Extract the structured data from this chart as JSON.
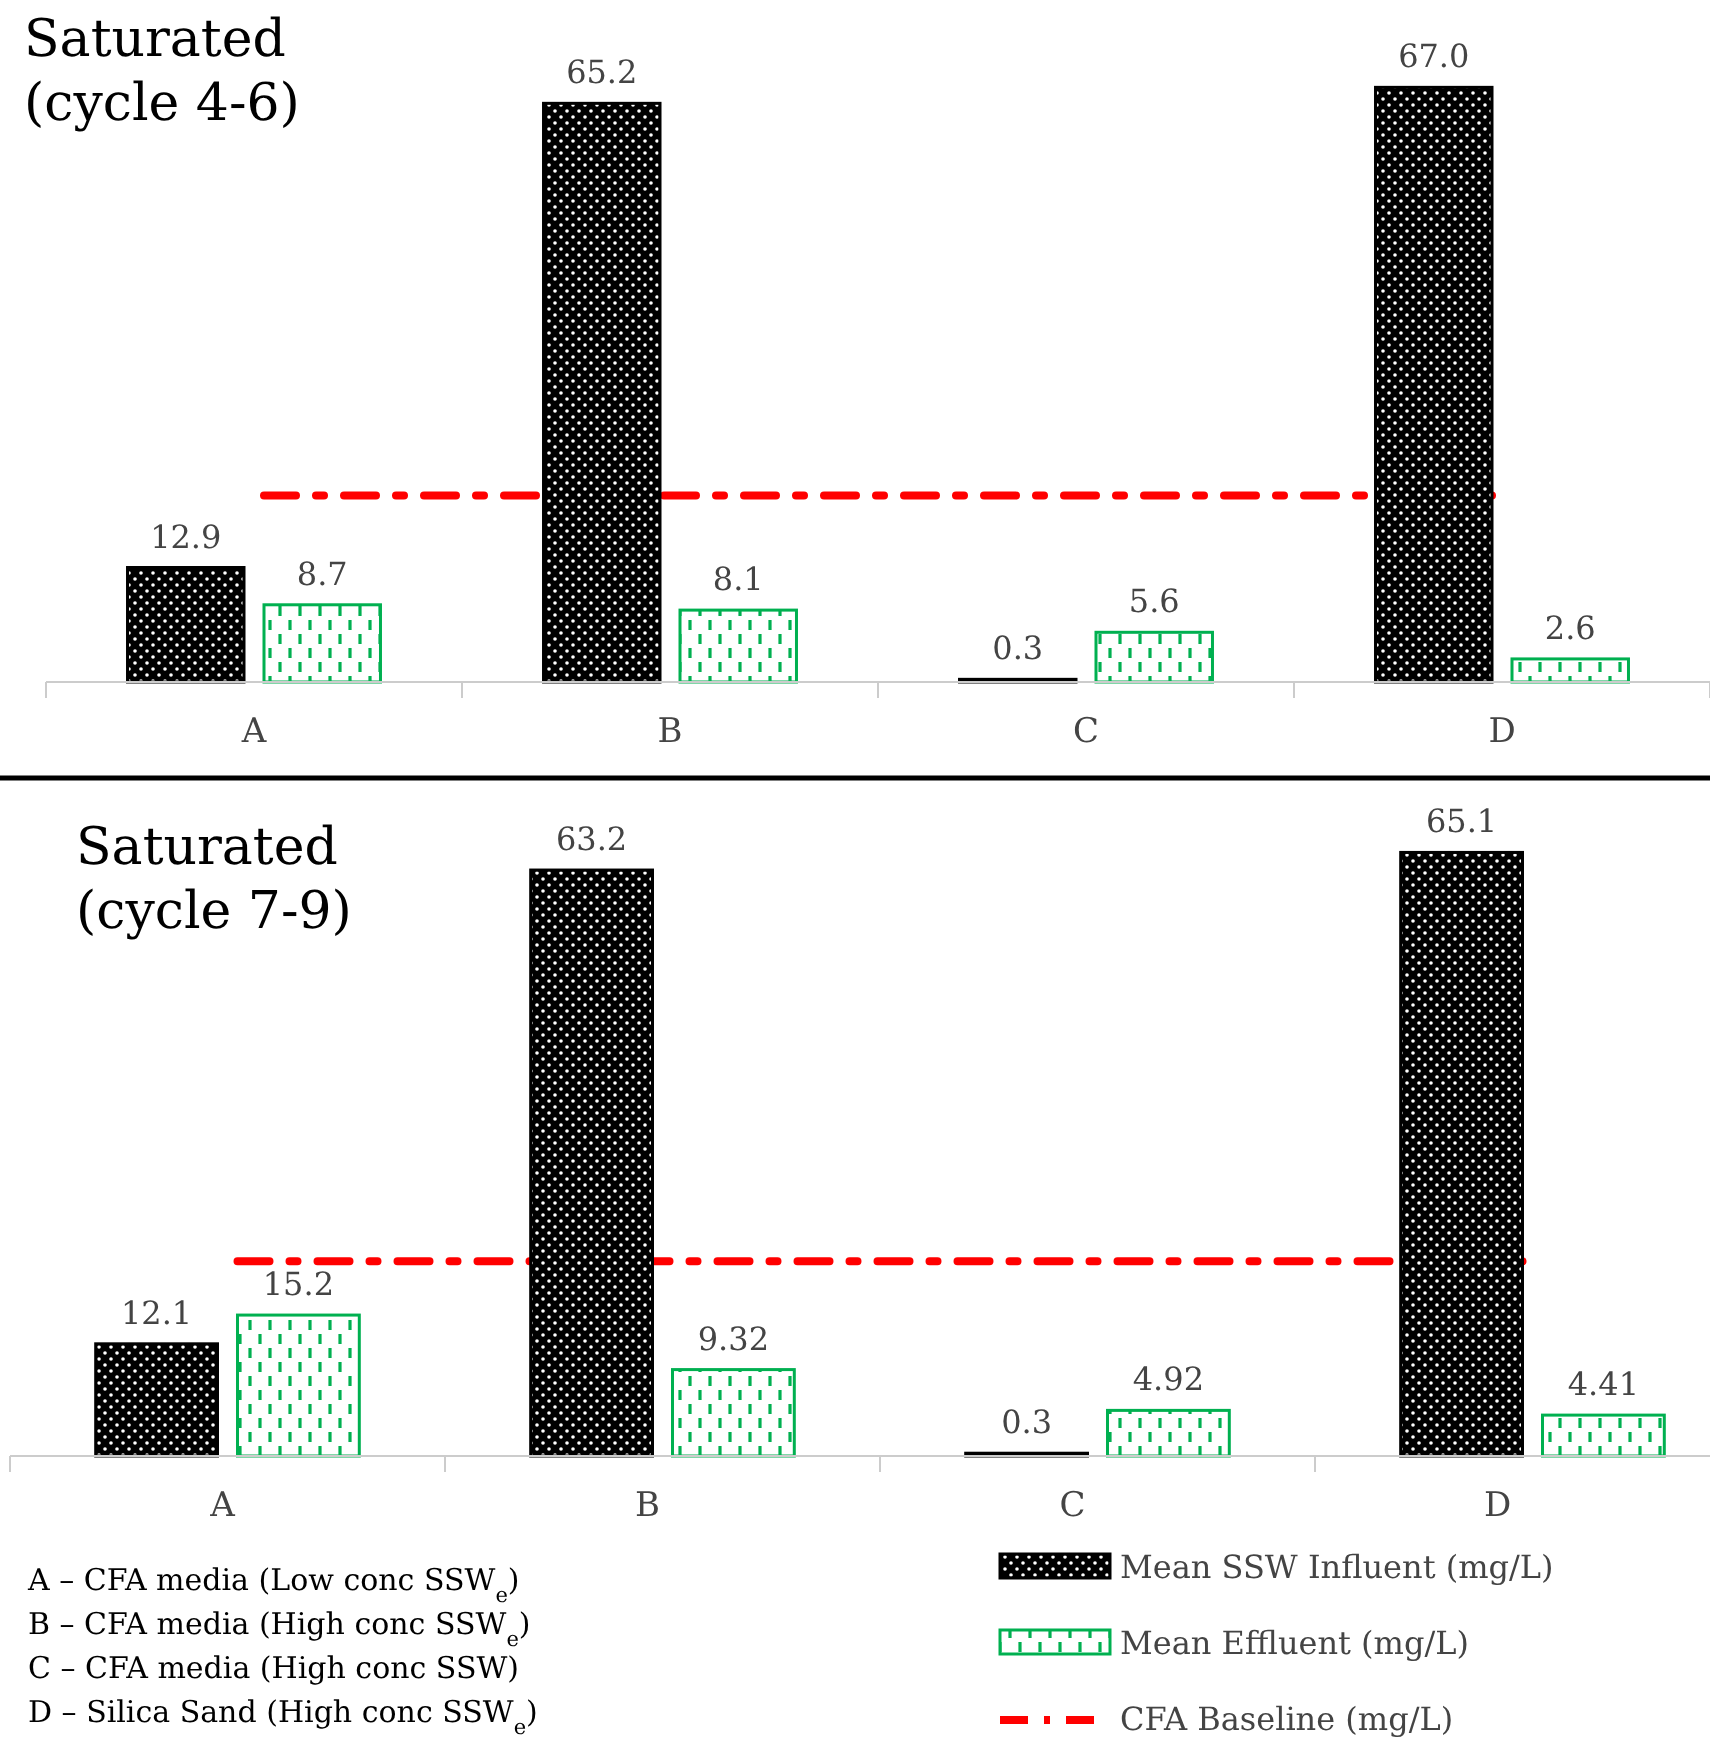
{
  "chart_data": [
    {
      "type": "bar",
      "title": "Saturated\n(cycle 4-6)",
      "categories": [
        "A",
        "B",
        "C",
        "D"
      ],
      "data_labels": true,
      "series": [
        {
          "color": "#000000",
          "values": [
            12.9,
            65.2,
            0.3,
            67.0
          ],
          "value_labels": [
            "12.9",
            "65.2",
            "0.3",
            "67.0"
          ]
        },
        {
          "color": "#00b050",
          "values": [
            8.7,
            8.1,
            5.6,
            2.6
          ]
        }
      ],
      "ref_lines": [
        {
          "axis": "y",
          "value": 21,
          "color": "#ff0000",
          "line_style": "dashdot"
        }
      ]
    },
    {
      "type": "bar",
      "title": "Saturated\n(cycle 7-9)",
      "categories": [
        "A",
        "B",
        "C",
        "D"
      ],
      "data_labels": true,
      "legend": "bottom right",
      "series": [
        {
          "name": "Mean SSW Influent (mg/L)",
          "color": "#000000",
          "values": [
            12.1,
            63.2,
            0.3,
            65.1
          ]
        },
        {
          "name": "Mean Effluent  (mg/L)",
          "color": "#00b050",
          "values": [
            15.2,
            9.32,
            4.92,
            4.41
          ]
        }
      ],
      "ref_lines": [
        {
          "axis": "y",
          "value": 21,
          "label": "CFA Baseline (mg/L)",
          "color": "#ff0000",
          "line_style": "dashdot"
        }
      ],
      "annotations": [
        "A – CFA media (Low conc SSW$_{e}$)",
        "B – CFA media (High conc SSW$_{e}$)",
        "C – CFA media (High conc SSW)",
        "D – Silica Sand (High conc SSW$_{e}$)"
      ]
    }
  ]
}
